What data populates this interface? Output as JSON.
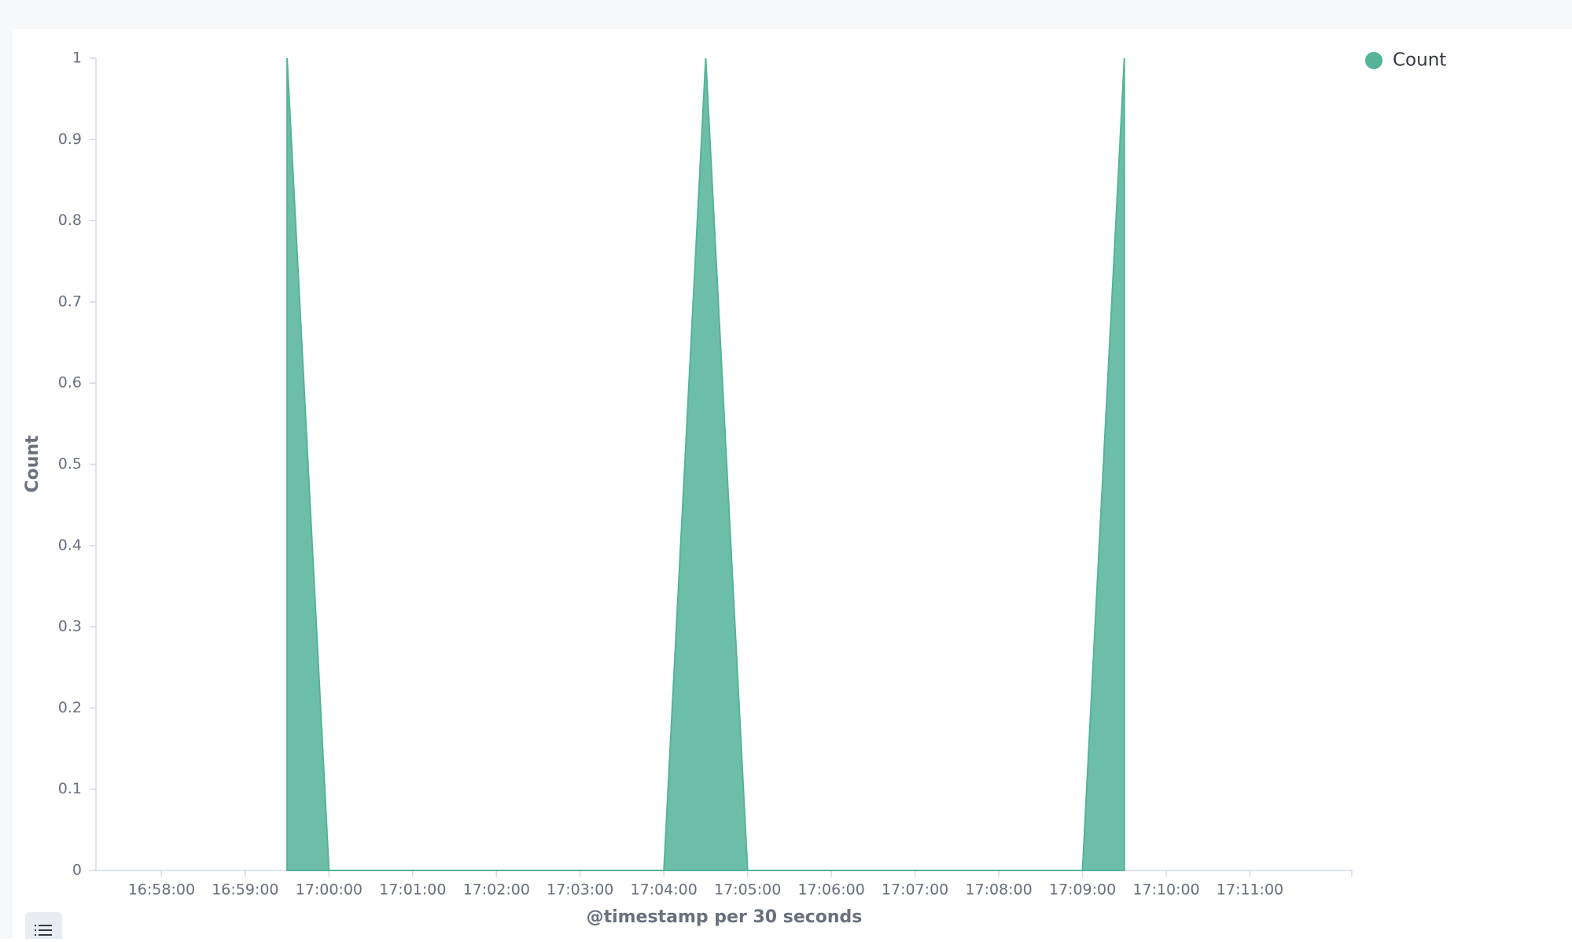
{
  "chart_data": {
    "type": "area",
    "x_label": "@timestamp per 30 seconds",
    "y_label": "Count",
    "x": [
      "16:59:30",
      "17:00:00",
      "17:00:30",
      "17:01:00",
      "17:01:30",
      "17:02:00",
      "17:02:30",
      "17:03:00",
      "17:03:30",
      "17:04:00",
      "17:04:30",
      "17:05:00",
      "17:05:30",
      "17:06:00",
      "17:06:30",
      "17:07:00",
      "17:07:30",
      "17:08:00",
      "17:08:30",
      "17:09:00",
      "17:09:30"
    ],
    "series": [
      {
        "name": "Count",
        "color": "#54b399",
        "values": [
          1,
          0,
          0,
          0,
          0,
          0,
          0,
          0,
          0,
          0,
          1,
          0,
          0,
          0,
          0,
          0,
          0,
          0,
          0,
          0,
          1
        ]
      }
    ],
    "xlim": [
      "16:57:13",
      "17:12:13"
    ],
    "xticks": [
      "16:58:00",
      "16:59:00",
      "17:00:00",
      "17:01:00",
      "17:02:00",
      "17:03:00",
      "17:04:00",
      "17:05:00",
      "17:06:00",
      "17:07:00",
      "17:08:00",
      "17:09:00",
      "17:10:00",
      "17:11:00"
    ],
    "ylim": [
      0,
      1
    ],
    "yticks": [
      0,
      0.1,
      0.2,
      0.3,
      0.4,
      0.5,
      0.6,
      0.7,
      0.8,
      0.9,
      1
    ],
    "legend": "top-right"
  }
}
